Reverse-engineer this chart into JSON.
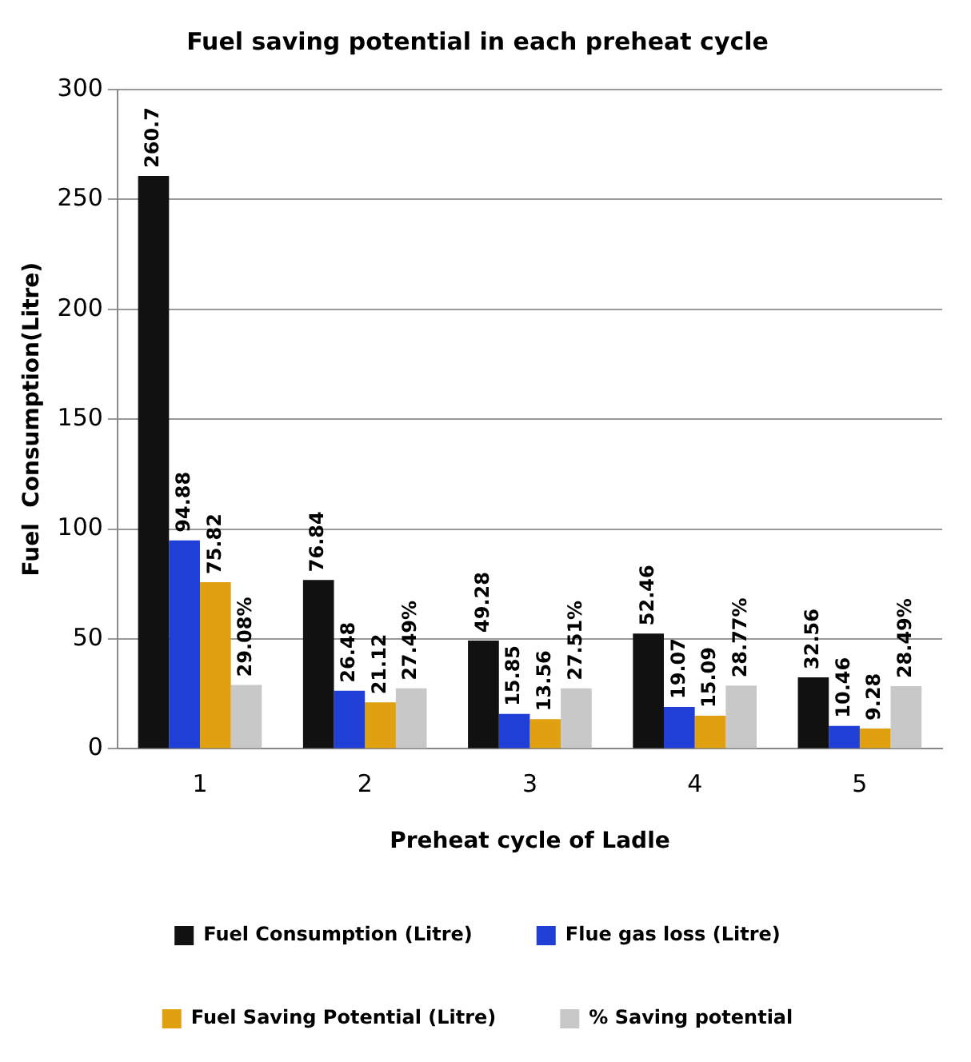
{
  "chart_data": {
    "type": "bar",
    "title": "Fuel saving potential in each preheat cycle",
    "xlabel": "Preheat cycle of Ladle",
    "ylabel": "Fuel  Consumption(Litre)",
    "categories": [
      "1",
      "2",
      "3",
      "4",
      "5"
    ],
    "series": [
      {
        "name": "Fuel Consumption (Litre)",
        "color": "#111111",
        "values": [
          260.7,
          76.84,
          49.28,
          52.46,
          32.56
        ],
        "value_labels": [
          "260.7",
          "76.84",
          "49.28",
          "52.46",
          "32.56"
        ]
      },
      {
        "name": "Flue gas loss (Litre)",
        "color": "#1f3fd6",
        "values": [
          94.88,
          26.48,
          15.85,
          19.07,
          10.46
        ],
        "value_labels": [
          "94.88",
          "26.48",
          "15.85",
          "19.07",
          "10.46"
        ]
      },
      {
        "name": "Fuel Saving Potential (Litre)",
        "color": "#e0a010",
        "values": [
          75.82,
          21.12,
          13.56,
          15.09,
          9.28
        ],
        "value_labels": [
          "75.82",
          "21.12",
          "13.56",
          "15.09",
          "9.28"
        ]
      },
      {
        "name": "% Saving potential",
        "color": "#c8c8c8",
        "values": [
          29.08,
          27.49,
          27.51,
          28.77,
          28.49
        ],
        "value_labels": [
          "29.08%",
          "27.49%",
          "27.51%",
          "28.77%",
          "28.49%"
        ]
      }
    ],
    "ylim": [
      0,
      300
    ],
    "yticks": [
      0,
      50,
      100,
      150,
      200,
      250,
      300
    ],
    "grid": "y",
    "legend": "bottom"
  }
}
